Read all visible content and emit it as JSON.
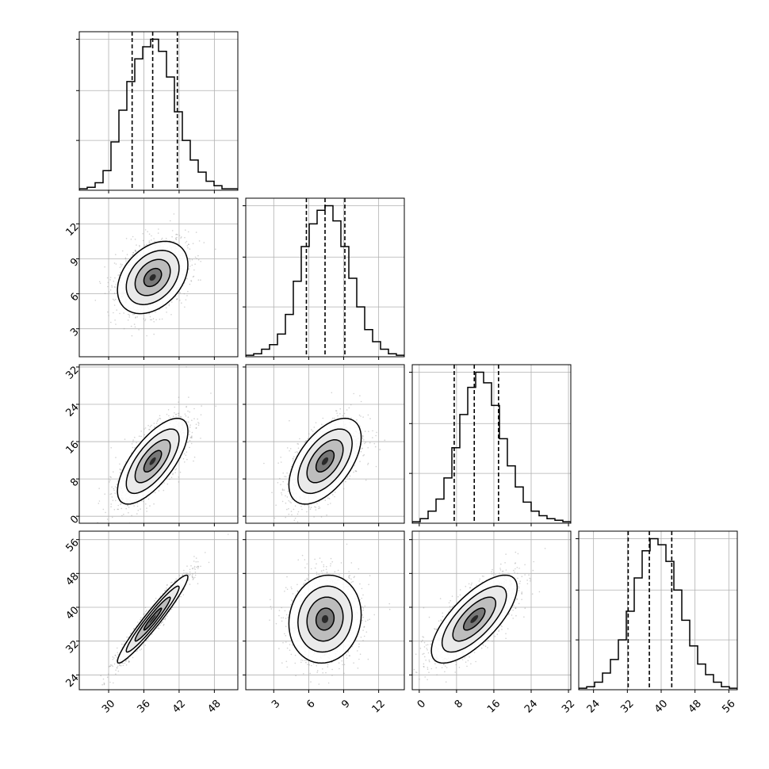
{
  "chart_data": {
    "type": "corner",
    "title": "",
    "parameters": [
      {
        "range": [
          25,
          52
        ],
        "ticks": [
          30,
          36,
          42,
          48
        ],
        "tick_labels": [
          "30",
          "36",
          "42",
          "48"
        ],
        "quantiles": [
          34,
          37.5,
          41.7
        ],
        "median": 37.5,
        "sd": 3.0,
        "hist": [
          0.01,
          0.02,
          0.05,
          0.13,
          0.32,
          0.53,
          0.72,
          0.87,
          0.95,
          1.0,
          0.92,
          0.75,
          0.52,
          0.33,
          0.2,
          0.12,
          0.06,
          0.03,
          0.01,
          0.01
        ]
      },
      {
        "range": [
          0.6,
          14.2
        ],
        "ticks": [
          3,
          6,
          9,
          12
        ],
        "tick_labels": [
          "3",
          "6",
          "9",
          "12"
        ],
        "quantiles": [
          5.8,
          7.4,
          9.1
        ],
        "median": 7.4,
        "sd": 1.55,
        "hist": [
          0.01,
          0.02,
          0.05,
          0.08,
          0.15,
          0.28,
          0.5,
          0.73,
          0.88,
          0.97,
          1.0,
          0.9,
          0.73,
          0.52,
          0.33,
          0.18,
          0.1,
          0.05,
          0.02,
          0.01
        ]
      },
      {
        "range": [
          -1.5,
          32.5
        ],
        "ticks": [
          0,
          8,
          16,
          24,
          32
        ],
        "tick_labels": [
          "0",
          "8",
          "16",
          "24",
          "32"
        ],
        "quantiles": [
          7.5,
          11.8,
          17.0
        ],
        "median": 11.8,
        "sd": 4.6,
        "hist": [
          0.01,
          0.03,
          0.08,
          0.16,
          0.3,
          0.5,
          0.72,
          0.9,
          1.0,
          0.93,
          0.78,
          0.56,
          0.38,
          0.24,
          0.14,
          0.08,
          0.05,
          0.03,
          0.02,
          0.01
        ]
      },
      {
        "range": [
          20.5,
          58
        ],
        "ticks": [
          24,
          32,
          40,
          48,
          56
        ],
        "tick_labels": [
          "24",
          "32",
          "40",
          "48",
          "56"
        ],
        "quantiles": [
          32.2,
          37.2,
          42.5
        ],
        "median": 37.2,
        "sd": 5.2,
        "hist": [
          0.01,
          0.02,
          0.05,
          0.11,
          0.2,
          0.33,
          0.52,
          0.74,
          0.92,
          1.0,
          0.96,
          0.85,
          0.66,
          0.46,
          0.29,
          0.17,
          0.1,
          0.05,
          0.02,
          0.01
        ]
      }
    ],
    "correlations": {
      "1-0": 0.35,
      "2-0": 0.7,
      "2-1": 0.55,
      "3-0": 0.96,
      "3-1": 0.1,
      "3-2": 0.72
    },
    "grid": true,
    "contour_levels": 4,
    "scatter_color": "#999999",
    "density_color": "#000000"
  }
}
